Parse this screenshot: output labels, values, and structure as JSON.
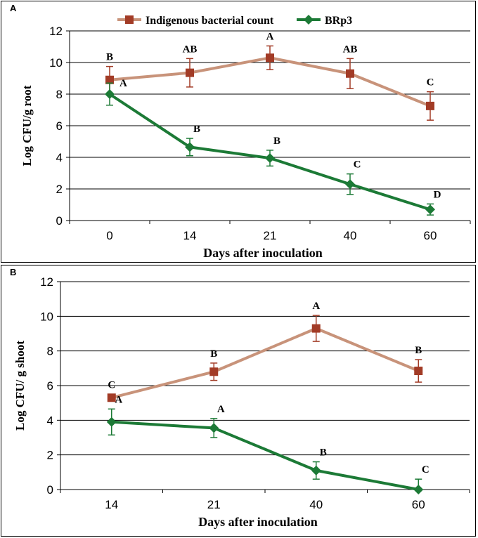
{
  "colors": {
    "indigenous_line": "#c8937a",
    "indigenous_marker": "#a23b26",
    "brp3_line": "#1c7a36",
    "brp3_marker": "#1c7a36",
    "grid": "#000000"
  },
  "chart_data": [
    {
      "type": "line",
      "panel_label": "A",
      "title": "",
      "xlabel": "Days after inoculation",
      "ylabel": "Log CFU/g root",
      "categories": [
        "0",
        "14",
        "21",
        "40",
        "60"
      ],
      "ylim": [
        0,
        12
      ],
      "yticks": [
        "0",
        "2",
        "4",
        "6",
        "8",
        "10",
        "12"
      ],
      "legend": "top-center",
      "series": [
        {
          "name": "Indigenous bacterial count",
          "marker": "square",
          "values": [
            8.9,
            9.35,
            10.3,
            9.3,
            7.25
          ],
          "error": [
            0.85,
            0.9,
            0.75,
            0.95,
            0.9
          ],
          "letters": [
            "B",
            "AB",
            "A",
            "AB",
            "C"
          ]
        },
        {
          "name": "BRp3",
          "marker": "diamond",
          "values": [
            8.0,
            4.65,
            3.95,
            2.3,
            0.7
          ],
          "error": [
            0.7,
            0.55,
            0.5,
            0.65,
            0.35
          ],
          "letters": [
            "A",
            "B",
            "B",
            "C",
            "D"
          ]
        }
      ]
    },
    {
      "type": "line",
      "panel_label": "B",
      "title": "",
      "xlabel": "Days after inoculation",
      "ylabel": "Log CFU/ g shoot",
      "categories": [
        "14",
        "21",
        "40",
        "60"
      ],
      "ylim": [
        0,
        12
      ],
      "yticks": [
        "0",
        "2",
        "4",
        "6",
        "8",
        "10",
        "12"
      ],
      "legend": "none",
      "series": [
        {
          "name": "Indigenous bacterial count",
          "marker": "square",
          "values": [
            5.3,
            6.8,
            9.3,
            6.85
          ],
          "error": [
            0.0,
            0.5,
            0.75,
            0.65
          ],
          "letters": [
            "C",
            "B",
            "A",
            "B"
          ]
        },
        {
          "name": "BRp3",
          "marker": "diamond",
          "values": [
            3.9,
            3.55,
            1.1,
            0.0
          ],
          "error": [
            0.75,
            0.55,
            0.5,
            0.6
          ],
          "letters": [
            "A",
            "A",
            "B",
            "C"
          ]
        }
      ]
    }
  ]
}
